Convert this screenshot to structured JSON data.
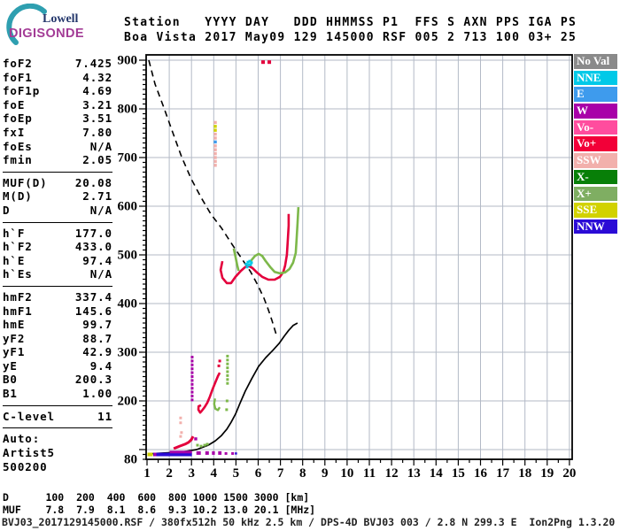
{
  "logo": {
    "line1": "Lowell",
    "line2": "DIGISONDE",
    "arc_color": "#2e9fb0"
  },
  "header": {
    "line1": "Station   YYYY DAY   DDD HHMMSS P1  FFS S AXN PPS IGA PS",
    "line2": "Boa Vista 2017 May09 129 145000 RSF 005 2 713 100 03+ 25"
  },
  "left_panel": {
    "groups": [
      {
        "rows": [
          {
            "label": "foF2",
            "value": "7.425"
          },
          {
            "label": "foF1",
            "value": "4.32"
          },
          {
            "label": "foF1p",
            "value": "4.69"
          },
          {
            "label": "foE",
            "value": "3.21"
          },
          {
            "label": "foEp",
            "value": "3.51"
          },
          {
            "label": "fxI",
            "value": "7.80"
          },
          {
            "label": "foEs",
            "value": "N/A"
          },
          {
            "label": "fmin",
            "value": "2.05"
          }
        ]
      },
      {
        "rows": [
          {
            "label": "MUF(D)",
            "value": "20.08"
          },
          {
            "label": "M(D)",
            "value": "2.71"
          },
          {
            "label": "D",
            "value": "N/A"
          }
        ]
      },
      {
        "rows": [
          {
            "label": "h`F",
            "value": "177.0"
          },
          {
            "label": "h`F2",
            "value": "433.0"
          },
          {
            "label": "h`E",
            "value": "97.4"
          },
          {
            "label": "h`Es",
            "value": "N/A"
          }
        ]
      },
      {
        "rows": [
          {
            "label": "hmF2",
            "value": "337.4"
          },
          {
            "label": "hmF1",
            "value": "145.6"
          },
          {
            "label": "hmE",
            "value": "99.7"
          },
          {
            "label": "yF2",
            "value": "88.7"
          },
          {
            "label": "yF1",
            "value": "42.9"
          },
          {
            "label": "yE",
            "value": "9.4"
          },
          {
            "label": "B0",
            "value": "200.3"
          },
          {
            "label": "B1",
            "value": "1.00"
          }
        ]
      },
      {
        "rows": [
          {
            "label": "C-level",
            "value": "11"
          }
        ]
      }
    ],
    "footer": [
      "Auto:",
      "Artist5",
      "500200"
    ]
  },
  "legend": {
    "items": [
      {
        "label": "No Val",
        "color": "#8a8a8a"
      },
      {
        "label": "NNE",
        "color": "#00c9e8"
      },
      {
        "label": "E",
        "color": "#3e9bed"
      },
      {
        "label": "W",
        "color": "#a800a8"
      },
      {
        "label": "Vo-",
        "color": "#ff4d9e"
      },
      {
        "label": "Vo+",
        "color": "#f20038"
      },
      {
        "label": "SSW",
        "color": "#f2b0ac"
      },
      {
        "label": "X-",
        "color": "#087f08"
      },
      {
        "label": "X+",
        "color": "#7fae62"
      },
      {
        "label": "SSE",
        "color": "#d2d200"
      },
      {
        "label": "NNW",
        "color": "#2b0bd6"
      }
    ]
  },
  "bottom_table": {
    "line1": "D      100  200  400  600  800 1000 1500 3000 [km]",
    "line2": "MUF    7.8  7.9  8.1  8.6  9.3 10.2 13.0 20.1 [MHz]"
  },
  "status_line": "BVJ03_2017129145000.RSF / 380fx512h 50 kHz 2.5 km / DPS-4D BVJ03 003 / 2.8 N 299.3 E  Ion2Png 1.3.20",
  "chart_data": {
    "type": "ionogram (height vs frequency scatter/line traces)",
    "x_axis": {
      "unit": "MHz",
      "min": 1,
      "max": 20,
      "tick_step": 1,
      "labels": [
        "1",
        "2",
        "3",
        "4",
        "5",
        "6",
        "7",
        "8",
        "9",
        "10",
        "11",
        "12",
        "13",
        "14",
        "15",
        "16",
        "17",
        "18",
        "19",
        "20"
      ]
    },
    "y_axis": {
      "unit": "km",
      "min": 80,
      "max": 900,
      "gridlines": [
        100,
        200,
        300,
        400,
        500,
        600,
        700,
        800,
        900
      ],
      "labels": [
        {
          "v": 900,
          "t": "900"
        },
        {
          "v": 800,
          "t": "800"
        },
        {
          "v": 700,
          "t": "700"
        },
        {
          "v": 600,
          "t": "600"
        },
        {
          "v": 500,
          "t": "500"
        },
        {
          "v": 400,
          "t": "400"
        },
        {
          "v": 300,
          "t": "300"
        },
        {
          "v": 200,
          "t": "200"
        },
        {
          "v": 80,
          "t": "80"
        }
      ]
    },
    "grid_color": "#b3bac6",
    "muf_table": {
      "D_km": [
        100,
        200,
        400,
        600,
        800,
        1000,
        1500,
        3000
      ],
      "MUF_MHz": [
        7.8,
        7.9,
        8.1,
        8.6,
        9.3,
        10.2,
        13.0,
        20.1
      ]
    },
    "traces": [
      {
        "name": "muf-transmission-curve",
        "style": "dash",
        "color": "#000000",
        "width": 1.6,
        "points": [
          [
            1.08,
            900
          ],
          [
            1.36,
            851
          ],
          [
            1.76,
            802
          ],
          [
            2.16,
            751
          ],
          [
            2.55,
            702
          ],
          [
            2.99,
            656
          ],
          [
            3.43,
            618
          ],
          [
            3.87,
            584
          ],
          [
            4.35,
            555
          ],
          [
            4.82,
            522
          ],
          [
            5.22,
            495
          ],
          [
            5.66,
            465
          ],
          [
            5.98,
            438
          ],
          [
            6.26,
            411
          ],
          [
            6.46,
            387
          ],
          [
            6.62,
            365
          ],
          [
            6.74,
            347
          ],
          [
            6.8,
            338
          ]
        ]
      },
      {
        "name": "true-height-profile",
        "style": "line",
        "color": "#000000",
        "width": 1.7,
        "points": [
          [
            1.04,
            91
          ],
          [
            1.76,
            93
          ],
          [
            2.55,
            95
          ],
          [
            3.23,
            100
          ],
          [
            3.75,
            109
          ],
          [
            4.07,
            118
          ],
          [
            4.35,
            129
          ],
          [
            4.59,
            142
          ],
          [
            4.78,
            156
          ],
          [
            4.98,
            173
          ],
          [
            5.18,
            195
          ],
          [
            5.42,
            220
          ],
          [
            5.7,
            245
          ],
          [
            6.02,
            271
          ],
          [
            6.34,
            289
          ],
          [
            6.66,
            304
          ],
          [
            6.94,
            318
          ],
          [
            7.17,
            333
          ],
          [
            7.37,
            345
          ],
          [
            7.57,
            355
          ],
          [
            7.77,
            360
          ]
        ]
      },
      {
        "name": "f-trace-o-mode",
        "style": "line",
        "color": "#e4003c",
        "width": 2.6,
        "points": [
          [
            4.39,
            487
          ],
          [
            4.31,
            469
          ],
          [
            4.39,
            453
          ],
          [
            4.59,
            442
          ],
          [
            4.78,
            442
          ],
          [
            4.98,
            455
          ],
          [
            5.22,
            467
          ],
          [
            5.42,
            475
          ],
          [
            5.58,
            477
          ],
          [
            5.74,
            473
          ],
          [
            5.94,
            464
          ],
          [
            6.18,
            455
          ],
          [
            6.46,
            449
          ],
          [
            6.74,
            449
          ],
          [
            6.98,
            455
          ],
          [
            7.13,
            465
          ],
          [
            7.21,
            478
          ],
          [
            7.29,
            500
          ],
          [
            7.33,
            529
          ],
          [
            7.37,
            560
          ],
          [
            7.37,
            584
          ]
        ]
      },
      {
        "name": "f-trace-x-mode-left",
        "style": "line",
        "color": "#7db84a",
        "width": 2.6,
        "points": [
          [
            4.9,
            513
          ],
          [
            4.98,
            496
          ],
          [
            5.06,
            478
          ],
          [
            5.12,
            467
          ]
        ]
      },
      {
        "name": "f-trace-x-mode",
        "style": "line",
        "color": "#7db84a",
        "width": 2.6,
        "points": [
          [
            5.66,
            487
          ],
          [
            5.86,
            498
          ],
          [
            6.02,
            502
          ],
          [
            6.18,
            498
          ],
          [
            6.34,
            487
          ],
          [
            6.54,
            475
          ],
          [
            6.74,
            465
          ],
          [
            6.98,
            462
          ],
          [
            7.21,
            464
          ],
          [
            7.41,
            471
          ],
          [
            7.57,
            484
          ],
          [
            7.69,
            504
          ],
          [
            7.73,
            533
          ],
          [
            7.77,
            564
          ],
          [
            7.81,
            598
          ]
        ]
      },
      {
        "name": "f1-trace-o-mode",
        "style": "line",
        "color": "#e4003c",
        "width": 2.6,
        "points": [
          [
            4.27,
            258
          ],
          [
            4.19,
            251
          ],
          [
            4.07,
            238
          ],
          [
            3.95,
            224
          ],
          [
            3.83,
            209
          ],
          [
            3.71,
            196
          ],
          [
            3.59,
            187
          ],
          [
            3.47,
            180
          ],
          [
            3.39,
            176
          ],
          [
            3.31,
            182
          ],
          [
            3.32,
            189
          ],
          [
            3.43,
            191
          ]
        ]
      },
      {
        "name": "f1-red-dots",
        "style": "dots",
        "color": "#e4003c",
        "size": 3,
        "points": [
          [
            4.23,
            272
          ],
          [
            4.27,
            282
          ]
        ]
      },
      {
        "name": "e-trace-o-mode",
        "style": "line",
        "color": "#e4003c",
        "width": 3,
        "points": [
          [
            2.2,
            102
          ],
          [
            2.47,
            107
          ],
          [
            2.71,
            111
          ],
          [
            2.87,
            115
          ],
          [
            2.99,
            120
          ],
          [
            3.07,
            127
          ]
        ]
      },
      {
        "name": "e-trace-x-dots",
        "style": "dots",
        "color": "#7db84a",
        "size": 3,
        "points": [
          [
            3.27,
            109
          ],
          [
            3.43,
            107
          ],
          [
            3.59,
            109
          ],
          [
            3.71,
            111
          ]
        ]
      },
      {
        "name": "cusp-nne-dots",
        "style": "dots",
        "color": "#00c9e8",
        "size": 3,
        "points": [
          [
            5.46,
            481
          ],
          [
            5.54,
            485
          ],
          [
            5.62,
            487
          ],
          [
            5.7,
            484
          ],
          [
            5.5,
            475
          ],
          [
            5.58,
            479
          ],
          [
            5.66,
            480
          ]
        ]
      },
      {
        "name": "w-spread-column",
        "style": "dots",
        "color": "#a800a8",
        "size": 3,
        "points": [
          [
            3.03,
            202
          ],
          [
            3.03,
            210
          ],
          [
            3.03,
            218
          ],
          [
            3.03,
            226
          ],
          [
            3.03,
            234
          ],
          [
            3.03,
            242
          ],
          [
            3.03,
            250
          ],
          [
            3.03,
            258
          ],
          [
            3.03,
            266
          ],
          [
            3.03,
            274
          ],
          [
            3.03,
            282
          ],
          [
            3.03,
            290
          ]
        ]
      },
      {
        "name": "x-spread-column",
        "style": "dots",
        "color": "#7db84a",
        "size": 3,
        "points": [
          [
            4.62,
            236
          ],
          [
            4.62,
            244
          ],
          [
            4.62,
            252
          ],
          [
            4.62,
            260
          ],
          [
            4.62,
            268
          ],
          [
            4.62,
            276
          ],
          [
            4.62,
            284
          ],
          [
            4.62,
            292
          ],
          [
            4.6,
            200
          ],
          [
            4.58,
            182
          ]
        ]
      },
      {
        "name": "x-hook",
        "style": "line",
        "color": "#7db84a",
        "width": 2.4,
        "points": [
          [
            4.27,
            187
          ],
          [
            4.19,
            181
          ],
          [
            4.07,
            184
          ],
          [
            4.02,
            194
          ],
          [
            4.06,
            205
          ]
        ]
      },
      {
        "name": "ssw-spread-column",
        "style": "dots",
        "color": "#f2b0ac",
        "size": 3.4,
        "points": [
          [
            4.07,
            772
          ],
          [
            4.07,
            748
          ],
          [
            4.07,
            740
          ],
          [
            4.07,
            724
          ],
          [
            4.07,
            716
          ],
          [
            4.07,
            708
          ],
          [
            4.07,
            700
          ],
          [
            4.07,
            692
          ],
          [
            4.07,
            684
          ]
        ]
      },
      {
        "name": "sse-spread-dots",
        "style": "dots",
        "color": "#d2d200",
        "size": 3.4,
        "points": [
          [
            4.07,
            764
          ],
          [
            4.07,
            756
          ]
        ]
      },
      {
        "name": "e-spread-dot",
        "style": "dots",
        "color": "#3e9bed",
        "size": 3.4,
        "points": [
          [
            4.07,
            732
          ]
        ]
      },
      {
        "name": "ssw-sparse-dots",
        "style": "dots",
        "color": "#f2b0ac",
        "size": 3,
        "points": [
          [
            2.51,
            165
          ],
          [
            2.51,
            155
          ],
          [
            2.55,
            135
          ],
          [
            2.51,
            127
          ]
        ]
      },
      {
        "name": "top-red-marks",
        "style": "dots",
        "color": "#e4003c",
        "size": 4,
        "points": [
          [
            6.22,
            896
          ],
          [
            6.5,
            896
          ]
        ]
      },
      {
        "name": "w-e-dot",
        "style": "dots",
        "color": "#a800a8",
        "size": 3.4,
        "points": [
          [
            3.19,
            122
          ]
        ]
      },
      {
        "name": "sse-stripe",
        "style": "line",
        "color": "#d2d200",
        "width": 4,
        "points": [
          [
            1.02,
            90
          ],
          [
            1.26,
            90
          ]
        ]
      },
      {
        "name": "nnw-stripe",
        "style": "line",
        "color": "#2b0bd6",
        "width": 4,
        "points": [
          [
            1.28,
            90
          ],
          [
            3.02,
            90
          ]
        ]
      },
      {
        "name": "w-speck-stripe",
        "style": "line",
        "color": "#a800a8",
        "width": 4,
        "points": [
          [
            1.3,
            90
          ],
          [
            1.42,
            90
          ]
        ]
      },
      {
        "name": "w-upper-stripe",
        "style": "line",
        "color": "#a800a8",
        "width": 3,
        "points": [
          [
            2.02,
            95
          ],
          [
            3.02,
            95
          ]
        ]
      },
      {
        "name": "w-dash-1",
        "style": "line",
        "color": "#a800a8",
        "width": 4,
        "points": [
          [
            3.22,
            93
          ],
          [
            3.42,
            93
          ]
        ]
      },
      {
        "name": "w-dash-2",
        "style": "line",
        "color": "#a800a8",
        "width": 4,
        "points": [
          [
            3.62,
            93
          ],
          [
            3.78,
            93
          ]
        ]
      },
      {
        "name": "w-dash-3",
        "style": "line",
        "color": "#a800a8",
        "width": 4,
        "points": [
          [
            3.92,
            93
          ],
          [
            4.05,
            93
          ]
        ]
      },
      {
        "name": "w-dash-4",
        "style": "line",
        "color": "#a800a8",
        "width": 4,
        "points": [
          [
            4.2,
            93
          ],
          [
            4.35,
            93
          ]
        ]
      },
      {
        "name": "w-dash-dots",
        "style": "dots",
        "color": "#a800a8",
        "size": 3,
        "points": [
          [
            4.55,
            92
          ],
          [
            4.85,
            92
          ]
        ]
      },
      {
        "name": "nnw-dot",
        "style": "dots",
        "color": "#2b0bd6",
        "size": 2.5,
        "points": [
          [
            5.0,
            92
          ]
        ]
      }
    ]
  }
}
